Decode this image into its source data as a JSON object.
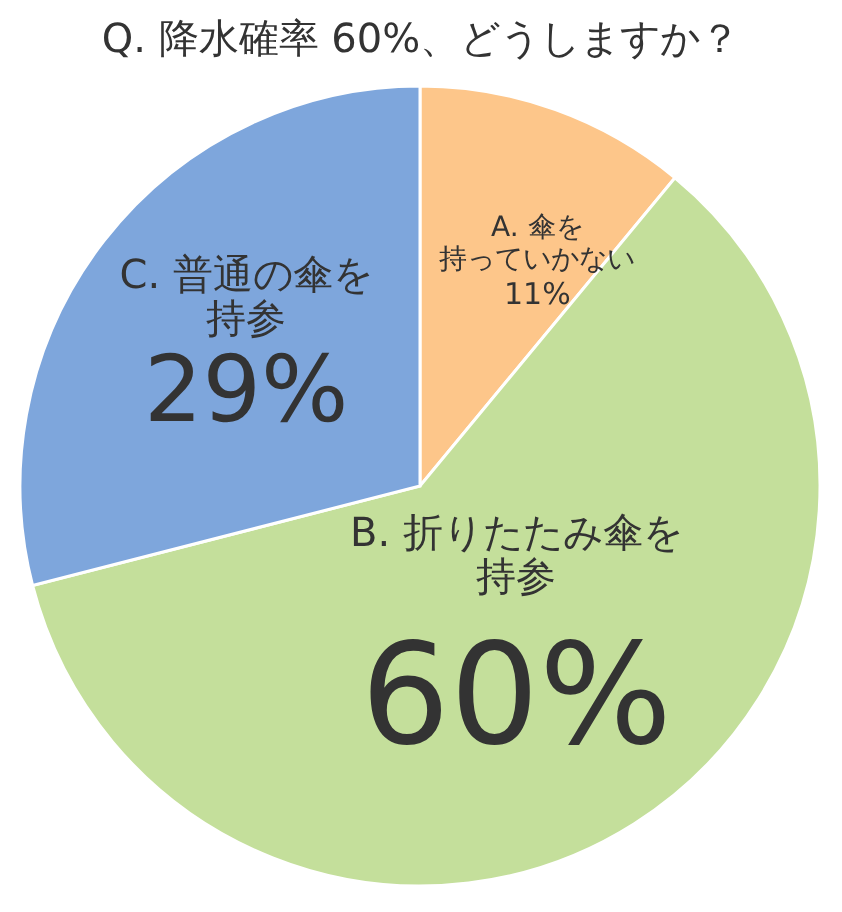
{
  "chart_data": {
    "type": "pie",
    "title": "Q. 降水確率 60%、どうしますか？",
    "categories": [
      "A. 傘を持っていかない",
      "B. 折りたたみ傘を持参",
      "C. 普通の傘を持参"
    ],
    "values": [
      11,
      60,
      29
    ],
    "value_labels": [
      "11%",
      "60%",
      "29%"
    ],
    "colors": [
      "#fdc68a",
      "#c4df9b",
      "#7ea6dc"
    ],
    "data_labels": true
  }
}
